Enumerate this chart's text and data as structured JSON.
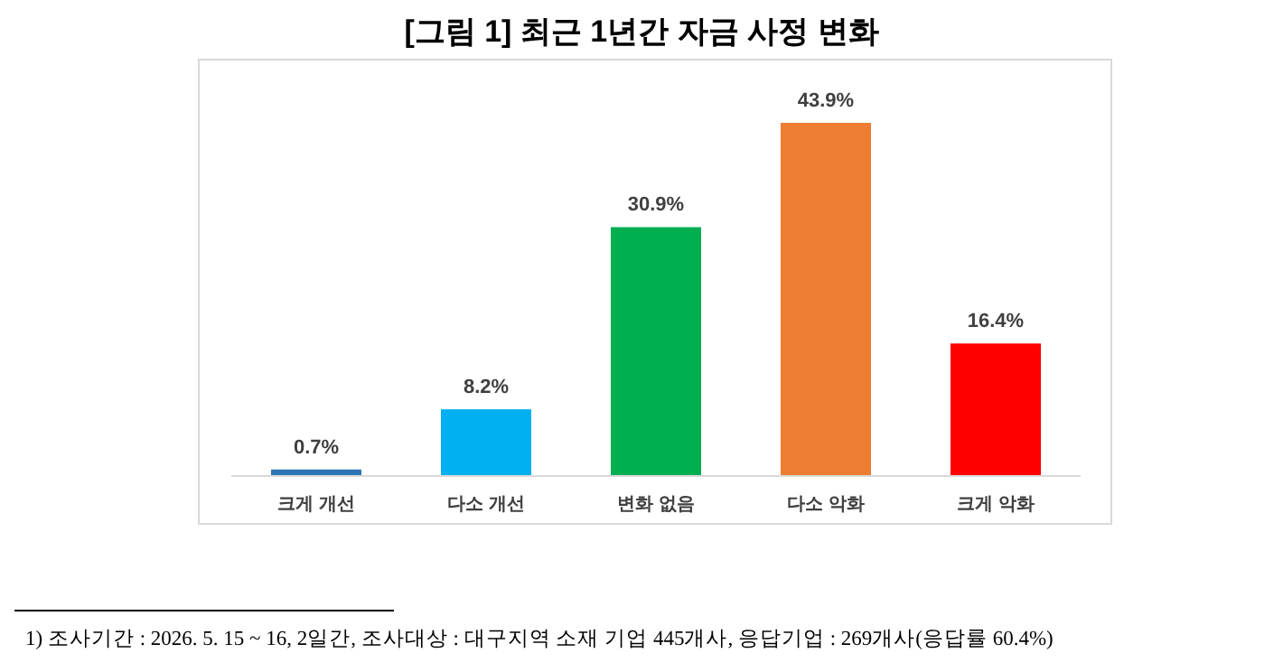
{
  "chart_data": {
    "type": "bar",
    "title": "[그림 1] 최근 1년간 자금 사정 변화",
    "categories": [
      "크게 개선",
      "다소 개선",
      "변화 없음",
      "다소 악화",
      "크게 악화"
    ],
    "values": [
      0.7,
      8.2,
      30.9,
      43.9,
      16.4
    ],
    "colors": [
      "#2e75b6",
      "#00b0f0",
      "#00b050",
      "#ed7d31",
      "#ff0000"
    ],
    "value_labels": [
      "0.7%",
      "8.2%",
      "30.9%",
      "43.9%",
      "16.4%"
    ],
    "annotations": [
      "1) 조사기간 : 2026. 5. 15 ~ 16, 2일간, 조사대상 : 대구지역 소재 기업 445개사, 응답기업 : 269개사(응답률 60.4%)"
    ]
  }
}
